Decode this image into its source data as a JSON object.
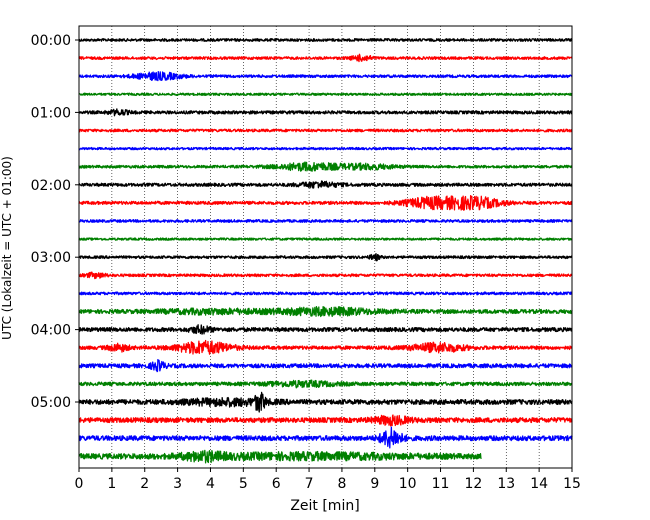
{
  "chart_data": {
    "type": "line",
    "title": "",
    "xlabel": "Zeit  [min]",
    "ylabel": "UTC (Lokalzeit = UTC + 01:00)",
    "xlim": [
      0,
      15
    ],
    "x_ticks": [
      "0",
      "1",
      "2",
      "3",
      "4",
      "5",
      "6",
      "7",
      "8",
      "9",
      "10",
      "11",
      "12",
      "13",
      "14",
      "15"
    ],
    "y_ticks": [
      "00:00",
      "01:00",
      "02:00",
      "03:00",
      "04:00",
      "05:00"
    ],
    "grid": {
      "x": "dotted",
      "y": "off"
    },
    "trace_interval_min": 15,
    "trace_colors": [
      "#000000",
      "#ff0000",
      "#0000ff",
      "#008000"
    ],
    "traces": [
      {
        "start": "00:00",
        "amplitude": 0.6,
        "end_min": 15,
        "events": []
      },
      {
        "start": "00:15",
        "amplitude": 0.6,
        "end_min": 15,
        "events": [
          {
            "t": 8.6,
            "w": 0.3,
            "a": 1.2
          }
        ]
      },
      {
        "start": "00:30",
        "amplitude": 0.6,
        "end_min": 15,
        "events": [
          {
            "t": 2.4,
            "w": 0.7,
            "a": 1.5
          }
        ]
      },
      {
        "start": "00:45",
        "amplitude": 0.5,
        "end_min": 15,
        "events": []
      },
      {
        "start": "01:00",
        "amplitude": 0.7,
        "end_min": 15,
        "events": [
          {
            "t": 1.2,
            "w": 0.3,
            "a": 1.0
          }
        ]
      },
      {
        "start": "01:15",
        "amplitude": 0.6,
        "end_min": 15,
        "events": []
      },
      {
        "start": "01:30",
        "amplitude": 0.5,
        "end_min": 15,
        "events": []
      },
      {
        "start": "01:45",
        "amplitude": 0.6,
        "end_min": 15,
        "events": [
          {
            "t": 7.0,
            "w": 1.0,
            "a": 1.6
          },
          {
            "t": 8.8,
            "w": 0.8,
            "a": 1.0
          }
        ]
      },
      {
        "start": "02:00",
        "amplitude": 0.7,
        "end_min": 15,
        "events": [
          {
            "t": 7.3,
            "w": 0.6,
            "a": 1.1
          }
        ]
      },
      {
        "start": "02:15",
        "amplitude": 0.7,
        "end_min": 15,
        "events": [
          {
            "t": 10.7,
            "w": 0.8,
            "a": 2.2
          },
          {
            "t": 12.0,
            "w": 0.8,
            "a": 2.5
          }
        ]
      },
      {
        "start": "02:30",
        "amplitude": 0.6,
        "end_min": 15,
        "events": []
      },
      {
        "start": "02:45",
        "amplitude": 0.5,
        "end_min": 15,
        "events": []
      },
      {
        "start": "03:00",
        "amplitude": 0.6,
        "end_min": 15,
        "events": [
          {
            "t": 9.0,
            "w": 0.15,
            "a": 1.2
          }
        ]
      },
      {
        "start": "03:15",
        "amplitude": 0.6,
        "end_min": 15,
        "events": [
          {
            "t": 0.5,
            "w": 0.3,
            "a": 1.0
          }
        ]
      },
      {
        "start": "03:30",
        "amplitude": 0.6,
        "end_min": 15,
        "events": []
      },
      {
        "start": "03:45",
        "amplitude": 0.9,
        "end_min": 15,
        "events": [
          {
            "t": 7.5,
            "w": 1.5,
            "a": 1.4
          },
          {
            "t": 4.0,
            "w": 1.5,
            "a": 0.8
          }
        ]
      },
      {
        "start": "04:00",
        "amplitude": 0.9,
        "end_min": 15,
        "events": [
          {
            "t": 3.7,
            "w": 0.3,
            "a": 1.4
          }
        ]
      },
      {
        "start": "04:15",
        "amplitude": 0.8,
        "end_min": 15,
        "events": [
          {
            "t": 1.2,
            "w": 0.3,
            "a": 1.4
          },
          {
            "t": 3.8,
            "w": 0.8,
            "a": 2.6
          },
          {
            "t": 10.9,
            "w": 0.8,
            "a": 1.8
          }
        ]
      },
      {
        "start": "04:30",
        "amplitude": 0.9,
        "end_min": 15,
        "events": [
          {
            "t": 2.4,
            "w": 0.2,
            "a": 2.0
          }
        ]
      },
      {
        "start": "04:45",
        "amplitude": 0.8,
        "end_min": 15,
        "events": [
          {
            "t": 6.8,
            "w": 1.0,
            "a": 1.0
          }
        ]
      },
      {
        "start": "05:00",
        "amplitude": 1.1,
        "end_min": 15,
        "events": [
          {
            "t": 5.5,
            "w": 0.15,
            "a": 3.5
          },
          {
            "t": 4.5,
            "w": 1.2,
            "a": 1.2
          }
        ]
      },
      {
        "start": "05:15",
        "amplitude": 1.1,
        "end_min": 15,
        "events": [
          {
            "t": 9.5,
            "w": 0.5,
            "a": 1.6
          }
        ]
      },
      {
        "start": "05:30",
        "amplitude": 1.1,
        "end_min": 15,
        "events": [
          {
            "t": 9.5,
            "w": 0.3,
            "a": 4.0
          }
        ]
      },
      {
        "start": "05:45",
        "amplitude": 1.2,
        "end_min": 12.25,
        "events": [
          {
            "t": 3.8,
            "w": 0.6,
            "a": 1.5
          },
          {
            "t": 7.0,
            "w": 3.0,
            "a": 1.0
          }
        ]
      }
    ]
  }
}
